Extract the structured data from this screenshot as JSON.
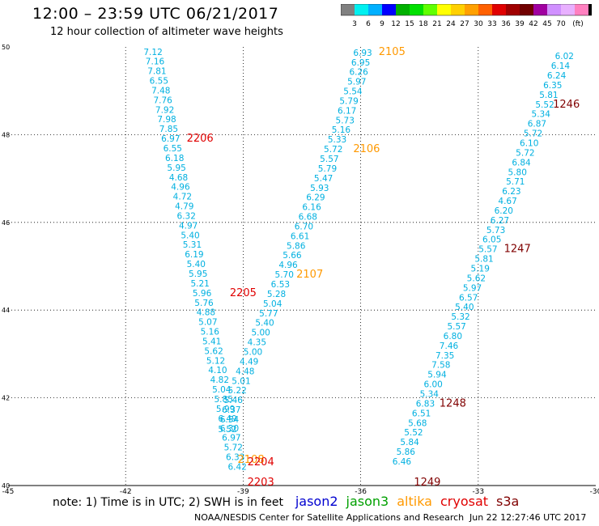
{
  "header": {
    "title": "12:00 – 23:59 UTC 06/21/2017",
    "subtitle": "12 hour collection of altimeter wave heights"
  },
  "colorbar": {
    "unit": "(ft)",
    "colors": [
      "#808080",
      "#00f0f0",
      "#00b0ff",
      "#0000ff",
      "#00b000",
      "#00e000",
      "#60ff00",
      "#ffff00",
      "#ffd000",
      "#ffa000",
      "#ff6000",
      "#e00000",
      "#a00000",
      "#700000",
      "#a000a0",
      "#d090ff",
      "#e8b0ff",
      "#ff80c0",
      "#000000"
    ],
    "labels": [
      "3",
      "6",
      "9",
      "12",
      "15",
      "18",
      "21",
      "24",
      "27",
      "30",
      "33",
      "36",
      "39",
      "42",
      "45",
      "70"
    ]
  },
  "chart_data": {
    "type": "scatter",
    "xlim": [
      -45,
      -30
    ],
    "ylim": [
      40,
      50
    ],
    "x_ticks": [
      "-45",
      "-42",
      "-39",
      "-36",
      "-33",
      "-30"
    ],
    "y_ticks": [
      "50",
      "48",
      "46",
      "44",
      "42",
      "40"
    ],
    "grid": true,
    "tracks": [
      {
        "name": "track-a",
        "color": "#00b0e0",
        "points": [
          {
            "x": -41.3,
            "y": 49.82,
            "v": "7.12"
          },
          {
            "x": -41.25,
            "y": 49.6,
            "v": "7.16"
          },
          {
            "x": -41.2,
            "y": 49.38,
            "v": "7.81"
          },
          {
            "x": -41.15,
            "y": 49.16,
            "v": "6.55"
          },
          {
            "x": -41.1,
            "y": 48.94,
            "v": "7.48"
          },
          {
            "x": -41.05,
            "y": 48.72,
            "v": "7.76"
          },
          {
            "x": -41.0,
            "y": 48.5,
            "v": "7.92"
          },
          {
            "x": -40.95,
            "y": 48.28,
            "v": "7.98"
          },
          {
            "x": -40.9,
            "y": 48.06,
            "v": "7.85"
          },
          {
            "x": -40.85,
            "y": 47.84,
            "v": "6.97"
          },
          {
            "x": -40.8,
            "y": 47.62,
            "v": "6.55"
          },
          {
            "x": -40.75,
            "y": 47.4,
            "v": "6.18"
          },
          {
            "x": -40.7,
            "y": 47.18,
            "v": "5.95"
          },
          {
            "x": -40.65,
            "y": 46.96,
            "v": "4.68"
          },
          {
            "x": -40.6,
            "y": 46.74,
            "v": "4.96"
          },
          {
            "x": -40.55,
            "y": 46.52,
            "v": "4.72"
          },
          {
            "x": -40.5,
            "y": 46.3,
            "v": "4.79"
          },
          {
            "x": -40.45,
            "y": 46.08,
            "v": "6.32"
          },
          {
            "x": -40.4,
            "y": 45.86,
            "v": "4.97"
          },
          {
            "x": -40.35,
            "y": 45.64,
            "v": "5.40"
          },
          {
            "x": -40.3,
            "y": 45.42,
            "v": "5.31"
          },
          {
            "x": -40.25,
            "y": 45.2,
            "v": "6.19"
          },
          {
            "x": -40.2,
            "y": 44.98,
            "v": "5.40"
          },
          {
            "x": -40.15,
            "y": 44.76,
            "v": "5.95"
          },
          {
            "x": -40.1,
            "y": 44.54,
            "v": "5.21"
          },
          {
            "x": -40.05,
            "y": 44.32,
            "v": "5.96"
          },
          {
            "x": -40.0,
            "y": 44.1,
            "v": "5.76"
          },
          {
            "x": -39.95,
            "y": 43.88,
            "v": "4.88"
          },
          {
            "x": -39.9,
            "y": 43.66,
            "v": "5.07"
          },
          {
            "x": -39.85,
            "y": 43.44,
            "v": "5.16"
          },
          {
            "x": -39.8,
            "y": 43.22,
            "v": "5.41"
          },
          {
            "x": -39.75,
            "y": 43.0,
            "v": "5.62"
          },
          {
            "x": -39.7,
            "y": 42.78,
            "v": "5.12"
          },
          {
            "x": -39.65,
            "y": 42.56,
            "v": "4.10"
          },
          {
            "x": -39.6,
            "y": 42.34,
            "v": "4.82"
          },
          {
            "x": -39.55,
            "y": 42.12,
            "v": "5.04"
          },
          {
            "x": -39.5,
            "y": 41.9,
            "v": "5.85"
          },
          {
            "x": -39.45,
            "y": 41.68,
            "v": "5.99"
          },
          {
            "x": -39.4,
            "y": 41.46,
            "v": "6.49"
          },
          {
            "x": -39.35,
            "y": 41.24,
            "v": "6.30"
          },
          {
            "x": -39.3,
            "y": 41.02,
            "v": "6.97"
          },
          {
            "x": -39.25,
            "y": 40.8,
            "v": "5.72"
          },
          {
            "x": -39.2,
            "y": 40.58,
            "v": "6.33"
          },
          {
            "x": -39.15,
            "y": 40.36,
            "v": "6.42"
          }
        ]
      },
      {
        "name": "track-b",
        "color": "#00b0e0",
        "points": [
          {
            "x": -35.95,
            "y": 49.8,
            "v": "6.93"
          },
          {
            "x": -36.0,
            "y": 49.58,
            "v": "6.95"
          },
          {
            "x": -36.05,
            "y": 49.36,
            "v": "6.26"
          },
          {
            "x": -36.1,
            "y": 49.14,
            "v": "5.97"
          },
          {
            "x": -36.2,
            "y": 48.92,
            "v": "5.54"
          },
          {
            "x": -36.3,
            "y": 48.7,
            "v": "5.79"
          },
          {
            "x": -36.35,
            "y": 48.48,
            "v": "6.17"
          },
          {
            "x": -36.4,
            "y": 48.26,
            "v": "5.73"
          },
          {
            "x": -36.5,
            "y": 48.04,
            "v": "5.16"
          },
          {
            "x": -36.6,
            "y": 47.82,
            "v": "5.33"
          },
          {
            "x": -36.7,
            "y": 47.6,
            "v": "5.72"
          },
          {
            "x": -36.8,
            "y": 47.38,
            "v": "5.57"
          },
          {
            "x": -36.85,
            "y": 47.16,
            "v": "5.79"
          },
          {
            "x": -36.95,
            "y": 46.94,
            "v": "5.47"
          },
          {
            "x": -37.05,
            "y": 46.72,
            "v": "5.93"
          },
          {
            "x": -37.15,
            "y": 46.5,
            "v": "6.29"
          },
          {
            "x": -37.25,
            "y": 46.28,
            "v": "6.16"
          },
          {
            "x": -37.35,
            "y": 46.06,
            "v": "6.68"
          },
          {
            "x": -37.45,
            "y": 45.84,
            "v": "6.70"
          },
          {
            "x": -37.55,
            "y": 45.62,
            "v": "6.61"
          },
          {
            "x": -37.65,
            "y": 45.4,
            "v": "5.86"
          },
          {
            "x": -37.75,
            "y": 45.18,
            "v": "5.66"
          },
          {
            "x": -37.85,
            "y": 44.96,
            "v": "4.96"
          },
          {
            "x": -37.95,
            "y": 44.74,
            "v": "5.70"
          },
          {
            "x": -38.05,
            "y": 44.52,
            "v": "6.53"
          },
          {
            "x": -38.15,
            "y": 44.3,
            "v": "5.28"
          },
          {
            "x": -38.25,
            "y": 44.08,
            "v": "5.04"
          },
          {
            "x": -38.35,
            "y": 43.86,
            "v": "5.77"
          },
          {
            "x": -38.45,
            "y": 43.64,
            "v": "5.40"
          },
          {
            "x": -38.55,
            "y": 43.42,
            "v": "5.00"
          },
          {
            "x": -38.65,
            "y": 43.2,
            "v": "4.35"
          },
          {
            "x": -38.75,
            "y": 42.98,
            "v": "5.00"
          },
          {
            "x": -38.85,
            "y": 42.76,
            "v": "4.49"
          },
          {
            "x": -38.95,
            "y": 42.54,
            "v": "4.48"
          },
          {
            "x": -39.05,
            "y": 42.32,
            "v": "5.01"
          },
          {
            "x": -39.15,
            "y": 42.1,
            "v": "5.22"
          },
          {
            "x": -39.25,
            "y": 41.88,
            "v": "5.46"
          },
          {
            "x": -39.3,
            "y": 41.66,
            "v": "6.37"
          },
          {
            "x": -39.35,
            "y": 41.44,
            "v": "6.54"
          },
          {
            "x": -39.4,
            "y": 41.22,
            "v": "5.52"
          }
        ]
      },
      {
        "name": "track-c",
        "color": "#00b0e0",
        "points": [
          {
            "x": -30.8,
            "y": 49.72,
            "v": "6.02"
          },
          {
            "x": -30.9,
            "y": 49.5,
            "v": "6.14"
          },
          {
            "x": -31.0,
            "y": 49.28,
            "v": "6.24"
          },
          {
            "x": -31.1,
            "y": 49.06,
            "v": "6.35"
          },
          {
            "x": -31.2,
            "y": 48.84,
            "v": "5.81"
          },
          {
            "x": -31.3,
            "y": 48.62,
            "v": "5.52"
          },
          {
            "x": -31.4,
            "y": 48.4,
            "v": "5.34"
          },
          {
            "x": -31.5,
            "y": 48.18,
            "v": "6.87"
          },
          {
            "x": -31.6,
            "y": 47.96,
            "v": "5.72"
          },
          {
            "x": -31.7,
            "y": 47.74,
            "v": "6.10"
          },
          {
            "x": -31.8,
            "y": 47.52,
            "v": "5.72"
          },
          {
            "x": -31.9,
            "y": 47.3,
            "v": "6.84"
          },
          {
            "x": -32.0,
            "y": 47.08,
            "v": "5.80"
          },
          {
            "x": -32.05,
            "y": 46.86,
            "v": "5.71"
          },
          {
            "x": -32.15,
            "y": 46.64,
            "v": "6.23"
          },
          {
            "x": -32.25,
            "y": 46.42,
            "v": "4.67"
          },
          {
            "x": -32.35,
            "y": 46.2,
            "v": "6.20"
          },
          {
            "x": -32.45,
            "y": 45.98,
            "v": "6.27"
          },
          {
            "x": -32.55,
            "y": 45.76,
            "v": "5.73"
          },
          {
            "x": -32.65,
            "y": 45.54,
            "v": "6.05"
          },
          {
            "x": -32.75,
            "y": 45.32,
            "v": "5.57"
          },
          {
            "x": -32.85,
            "y": 45.1,
            "v": "5.81"
          },
          {
            "x": -32.95,
            "y": 44.88,
            "v": "5.19"
          },
          {
            "x": -33.05,
            "y": 44.66,
            "v": "5.62"
          },
          {
            "x": -33.15,
            "y": 44.44,
            "v": "5.97"
          },
          {
            "x": -33.25,
            "y": 44.22,
            "v": "6.57"
          },
          {
            "x": -33.35,
            "y": 44.0,
            "v": "5.40"
          },
          {
            "x": -33.45,
            "y": 43.78,
            "v": "5.32"
          },
          {
            "x": -33.55,
            "y": 43.56,
            "v": "5.57"
          },
          {
            "x": -33.65,
            "y": 43.34,
            "v": "6.80"
          },
          {
            "x": -33.75,
            "y": 43.12,
            "v": "7.46"
          },
          {
            "x": -33.85,
            "y": 42.9,
            "v": "7.35"
          },
          {
            "x": -33.95,
            "y": 42.68,
            "v": "7.58"
          },
          {
            "x": -34.05,
            "y": 42.46,
            "v": "5.94"
          },
          {
            "x": -34.15,
            "y": 42.24,
            "v": "6.00"
          },
          {
            "x": -34.25,
            "y": 42.02,
            "v": "5.34"
          },
          {
            "x": -34.35,
            "y": 41.8,
            "v": "6.83"
          },
          {
            "x": -34.45,
            "y": 41.58,
            "v": "6.51"
          },
          {
            "x": -34.55,
            "y": 41.36,
            "v": "5.68"
          },
          {
            "x": -34.65,
            "y": 41.14,
            "v": "5.52"
          },
          {
            "x": -34.75,
            "y": 40.92,
            "v": "5.84"
          },
          {
            "x": -34.85,
            "y": 40.7,
            "v": "5.86"
          },
          {
            "x": -34.95,
            "y": 40.48,
            "v": "6.46"
          }
        ]
      }
    ],
    "pass_labels": [
      {
        "text": "2105",
        "x": -35.2,
        "y": 49.82,
        "color": "#ff9900",
        "sat": "altika"
      },
      {
        "text": "2106",
        "x": -35.85,
        "y": 47.6,
        "color": "#ff9900",
        "sat": "altika"
      },
      {
        "text": "2107",
        "x": -37.3,
        "y": 44.74,
        "color": "#ff9900",
        "sat": "altika"
      },
      {
        "text": "2108",
        "x": -38.8,
        "y": 40.52,
        "color": "#ff9900",
        "sat": "altika"
      },
      {
        "text": "2206",
        "x": -40.1,
        "y": 47.84,
        "color": "#e00000",
        "sat": "cryosat"
      },
      {
        "text": "2205",
        "x": -39.0,
        "y": 44.32,
        "color": "#e00000",
        "sat": "cryosat"
      },
      {
        "text": "2204",
        "x": -38.55,
        "y": 40.46,
        "color": "#e00000",
        "sat": "cryosat"
      },
      {
        "text": "2203",
        "x": -38.55,
        "y": 40.0,
        "color": "#e00000",
        "sat": "cryosat"
      },
      {
        "text": "1246",
        "x": -30.75,
        "y": 48.62,
        "color": "#800000",
        "sat": "s3a"
      },
      {
        "text": "1247",
        "x": -32.0,
        "y": 45.32,
        "color": "#800000",
        "sat": "s3a"
      },
      {
        "text": "1248",
        "x": -33.65,
        "y": 41.8,
        "color": "#800000",
        "sat": "s3a"
      },
      {
        "text": "1249",
        "x": -34.3,
        "y": 40.0,
        "color": "#800000",
        "sat": "s3a"
      }
    ]
  },
  "note": "note: 1) Time is in UTC; 2) SWH is in feet",
  "legend": [
    {
      "label": "jason2",
      "color": "#0000d0"
    },
    {
      "label": "jason3",
      "color": "#00a000"
    },
    {
      "label": "altika",
      "color": "#ff9900"
    },
    {
      "label": "cryosat",
      "color": "#e00000"
    },
    {
      "label": "s3a",
      "color": "#800000"
    }
  ],
  "footer": {
    "credit": "NOAA/NESDIS Center for Satellite Applications and Research",
    "timestamp": "Jun 22 12:27:46 UTC 2017"
  }
}
